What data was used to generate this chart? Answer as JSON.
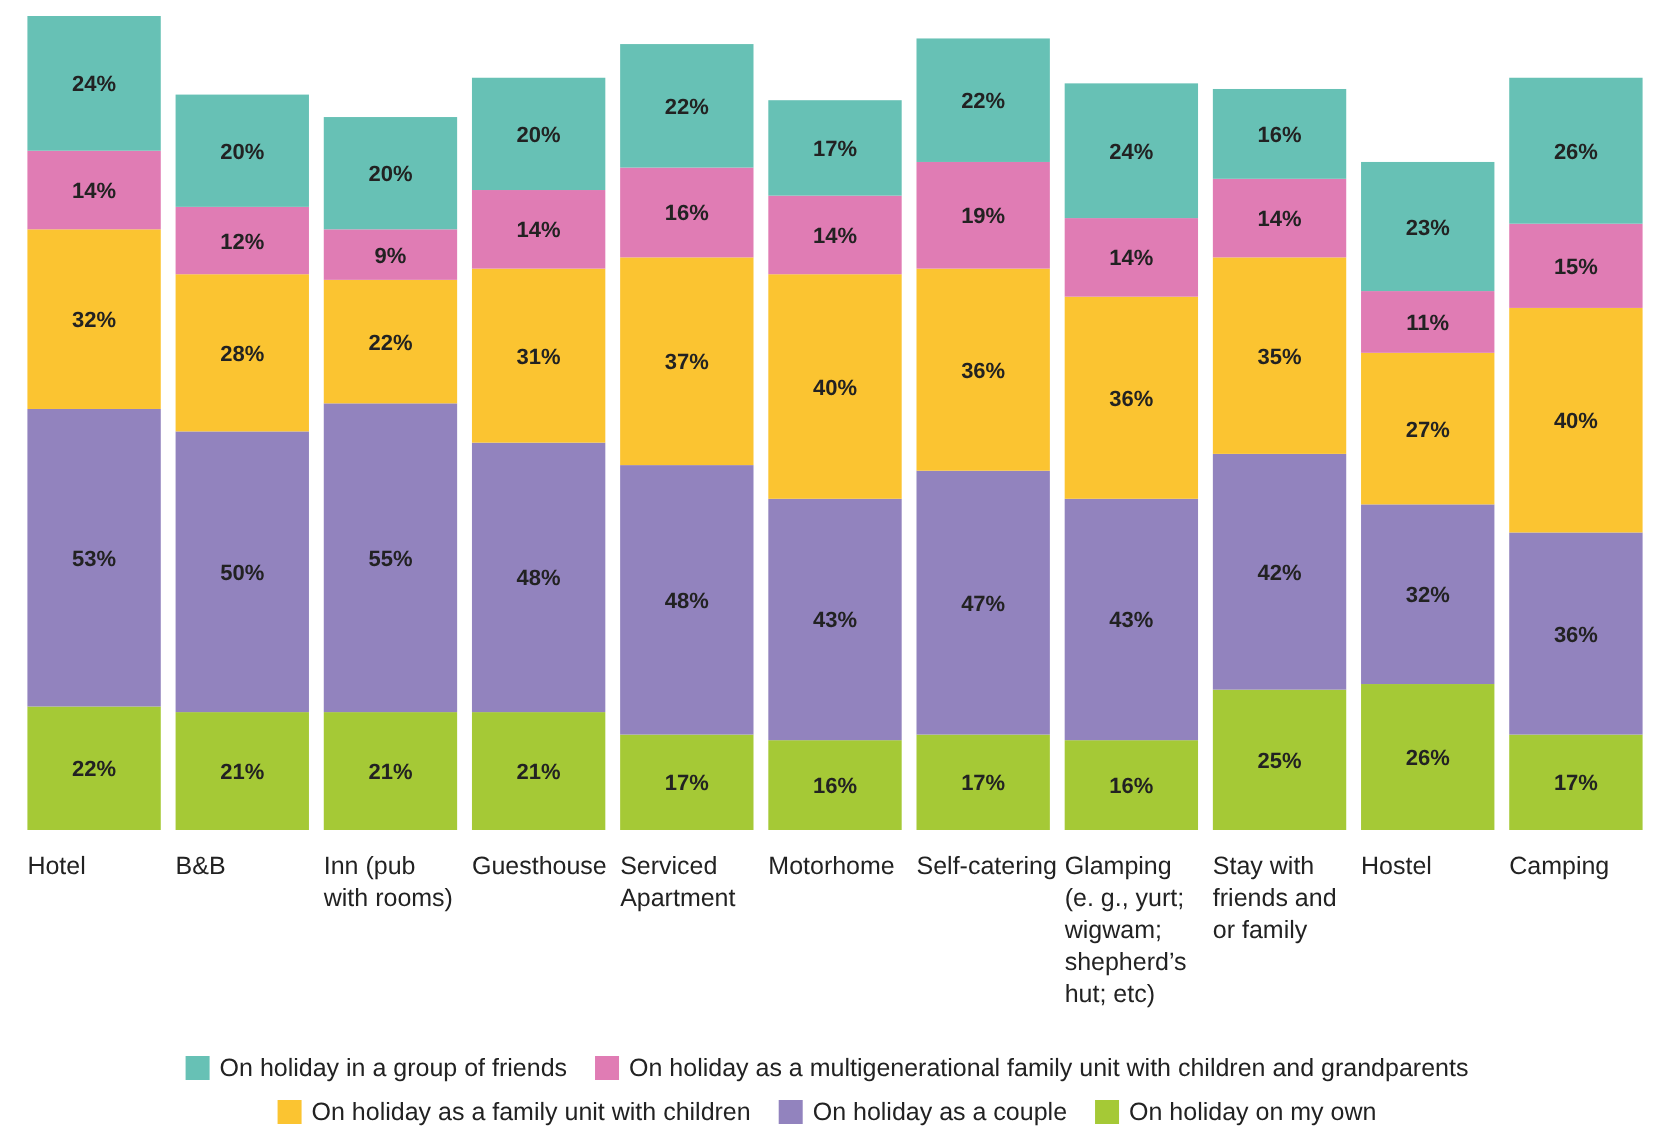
{
  "chart_data": {
    "type": "bar",
    "stacked": true,
    "legend": "bottom",
    "categories": [
      "Hotel",
      "B&B",
      "Inn (pub with rooms)",
      "Guesthouse",
      "Serviced Apartment",
      "Motorhome",
      "Self-catering",
      "Glamping (e. g., yurt; wigwam; shepherd’s hut; etc)",
      "Stay with friends and or family",
      "Hostel",
      "Camping"
    ],
    "series": [
      {
        "name": "On holiday on my own",
        "color": "#a5c936",
        "values": [
          22,
          21,
          21,
          21,
          17,
          16,
          17,
          16,
          25,
          26,
          17
        ],
        "value_labels": [
          "22%",
          "21%",
          "21%",
          "21%",
          "17%",
          "16%",
          "17%",
          "16%",
          "25%",
          "26%",
          "17%"
        ]
      },
      {
        "name": "On holiday as a couple",
        "color": "#9283be",
        "values": [
          53,
          50,
          55,
          48,
          48,
          43,
          47,
          43,
          42,
          32,
          36
        ],
        "value_labels": [
          "53%",
          "50%",
          "55%",
          "48%",
          "48%",
          "43%",
          "47%",
          "43%",
          "42%",
          "32%",
          "36%"
        ]
      },
      {
        "name": "On holiday as a family unit with children",
        "color": "#fbc431",
        "values": [
          32,
          28,
          22,
          31,
          37,
          40,
          36,
          36,
          35,
          27,
          40
        ],
        "value_labels": [
          "32%",
          "28%",
          "22%",
          "31%",
          "37%",
          "40%",
          "36%",
          "36%",
          "35%",
          "27%",
          "40%"
        ]
      },
      {
        "name": "On holiday as a multigenerational family unit with children and grandparents",
        "color": "#e07cb4",
        "values": [
          14,
          12,
          9,
          14,
          16,
          14,
          19,
          14,
          14,
          11,
          15
        ],
        "value_labels": [
          "14%",
          "12%",
          "9%",
          "14%",
          "16%",
          "14%",
          "19%",
          "14%",
          "14%",
          "11%",
          "15%"
        ]
      },
      {
        "name": "On holiday in a group of friends",
        "color": "#67c1b5",
        "values": [
          24,
          20,
          20,
          20,
          22,
          17,
          22,
          24,
          16,
          23,
          26
        ],
        "value_labels": [
          "24%",
          "20%",
          "20%",
          "20%",
          "22%",
          "17%",
          "22%",
          "24%",
          "16%",
          "23%",
          "26%"
        ]
      }
    ]
  }
}
